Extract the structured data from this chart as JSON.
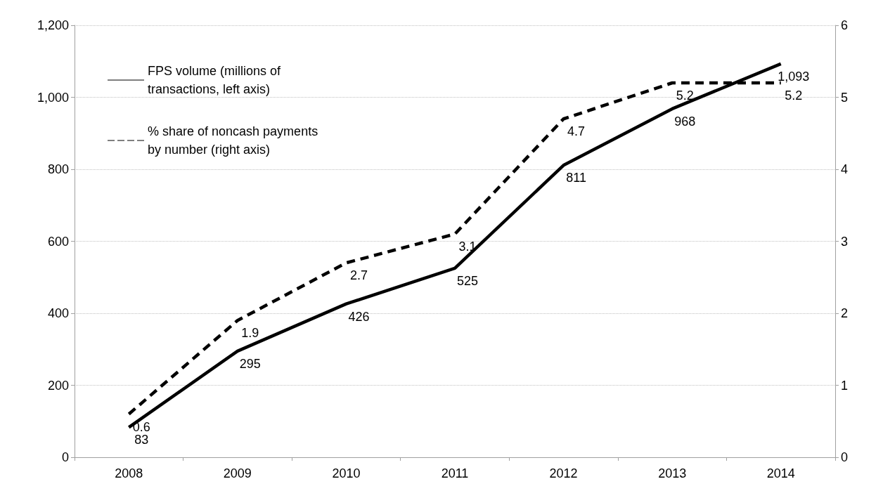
{
  "chart_data": {
    "type": "line",
    "categories": [
      "2008",
      "2009",
      "2010",
      "2011",
      "2012",
      "2013",
      "2014"
    ],
    "series": [
      {
        "name": "FPS volume (millions of transactions, left axis)",
        "color": "#000000",
        "line_style": "solid",
        "values": [
          83,
          295,
          426,
          525,
          811,
          968,
          1093
        ],
        "value_labels": [
          "83",
          "295",
          "426",
          "525",
          "811",
          "968",
          "1,093"
        ]
      },
      {
        "name": "% share of noncash payments by number (right axis)",
        "color": "#000000",
        "line_style": "dashed",
        "axis": "y2",
        "values": [
          0.6,
          1.9,
          2.7,
          3.1,
          4.7,
          5.2,
          5.2
        ]
      }
    ],
    "ylim": [
      0,
      1200
    ],
    "yticks": [
      0,
      200,
      400,
      600,
      800,
      {
        "value": 1000,
        "label": "1,000"
      },
      {
        "value": 1200,
        "label": "1,200"
      }
    ],
    "y2lim": [
      0,
      6
    ],
    "y2ticks": [
      0,
      1,
      2,
      3,
      4,
      5,
      6
    ],
    "grid": "y",
    "legend": "top left",
    "marker": "none",
    "data_labels": true
  }
}
